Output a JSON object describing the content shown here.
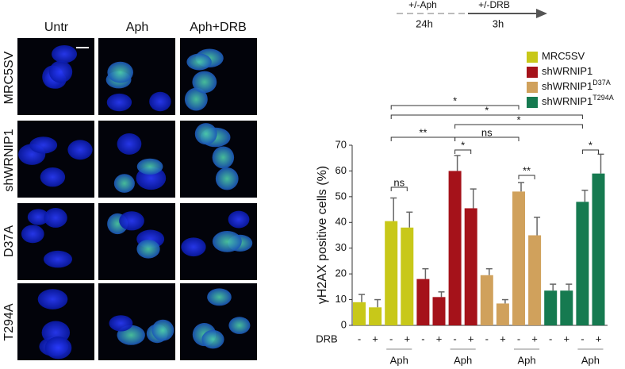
{
  "chart_data": {
    "type": "bar",
    "y_label": "γH2AX positive cells (%)",
    "x_row_label": "DRB",
    "categories": [
      "-",
      "+",
      "-",
      "+",
      "-",
      "+",
      "-",
      "+",
      "-",
      "+",
      "-",
      "+",
      "-",
      "+",
      "-",
      "+"
    ],
    "group_labels": [
      "Aph",
      "Aph",
      "Aph",
      "Aph"
    ],
    "ylim": [
      0,
      70
    ],
    "yticks": [
      0,
      10,
      20,
      30,
      40,
      50,
      60,
      70
    ],
    "series": [
      {
        "name": "MRC5SV",
        "color": "#c8c819",
        "values": [
          9,
          7,
          40.5,
          38,
          null,
          null,
          null,
          null,
          null,
          null,
          null,
          null,
          null,
          null,
          null,
          null
        ],
        "errors": [
          3,
          3,
          9,
          6,
          null,
          null,
          null,
          null,
          null,
          null,
          null,
          null,
          null,
          null,
          null,
          null
        ]
      },
      {
        "name": "shWRNIP1",
        "color": "#a5121a",
        "values": [
          null,
          null,
          null,
          null,
          18,
          11,
          60,
          45.5,
          null,
          null,
          null,
          null,
          null,
          null,
          null,
          null
        ],
        "errors": [
          null,
          null,
          null,
          null,
          4,
          2,
          6,
          7.5,
          null,
          null,
          null,
          null,
          null,
          null,
          null,
          null
        ]
      },
      {
        "name": "shWRNIP1",
        "name_sup": "D37A",
        "color": "#d0a15c",
        "values": [
          null,
          null,
          null,
          null,
          null,
          null,
          null,
          null,
          19.5,
          8.5,
          52,
          35,
          null,
          null,
          null,
          null
        ],
        "errors": [
          null,
          null,
          null,
          null,
          null,
          null,
          null,
          null,
          2.5,
          1.5,
          3.5,
          7,
          null,
          null,
          null,
          null
        ]
      },
      {
        "name": "shWRNIP1",
        "name_sup": "T294A",
        "color": "#167a50",
        "values": [
          null,
          null,
          null,
          null,
          null,
          null,
          null,
          null,
          null,
          null,
          null,
          null,
          13.5,
          13.5,
          48,
          59
        ],
        "errors": [
          null,
          null,
          null,
          null,
          null,
          null,
          null,
          null,
          null,
          null,
          null,
          null,
          2.5,
          2.5,
          4.5,
          7.5
        ]
      }
    ],
    "annotations": [
      "*",
      "*",
      "*",
      "**",
      "ns",
      "*",
      "ns",
      "**",
      "*"
    ]
  },
  "images": {
    "columns": [
      "Untr",
      "Aph",
      "Aph+DRB"
    ],
    "rows": [
      "MRC5SV",
      "shWRNIP1",
      "D37A",
      "T294A"
    ]
  },
  "timeline": {
    "steps": [
      "+/-Aph",
      "+/-DRB"
    ],
    "durations": [
      "24h",
      "3h"
    ]
  }
}
